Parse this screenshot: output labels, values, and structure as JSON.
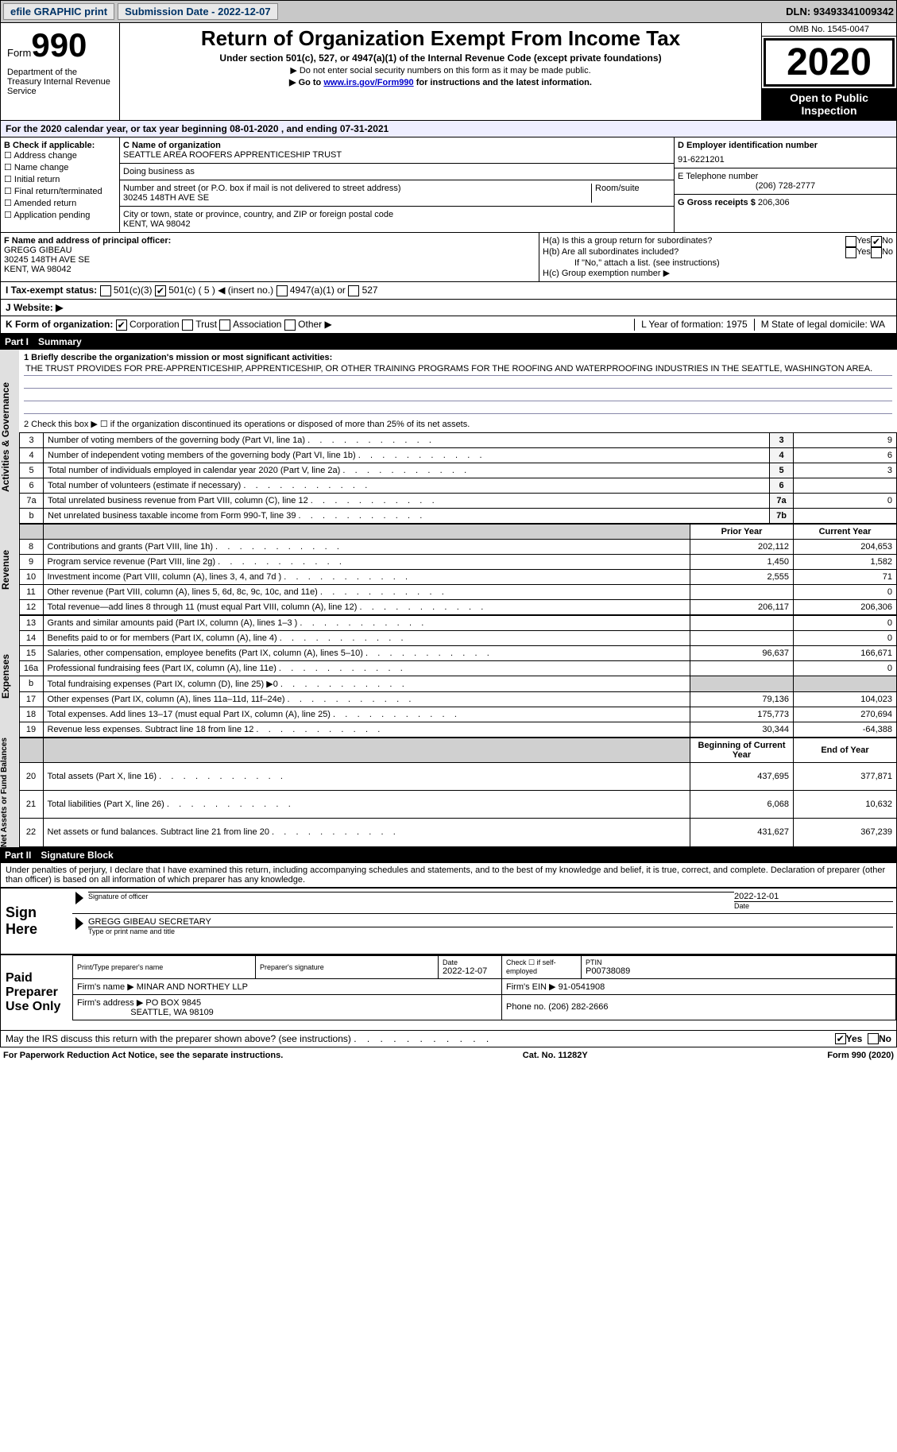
{
  "top_bar": {
    "efile": "efile GRAPHIC print",
    "submission": "Submission Date - 2022-12-07",
    "dln": "DLN: 93493341009342"
  },
  "header": {
    "form_label": "Form",
    "form_num": "990",
    "dept": "Department of the Treasury Internal Revenue Service",
    "title": "Return of Organization Exempt From Income Tax",
    "subtitle": "Under section 501(c), 527, or 4947(a)(1) of the Internal Revenue Code (except private foundations)",
    "note1": "▶ Do not enter social security numbers on this form as it may be made public.",
    "note2_pre": "▶ Go to ",
    "note2_link": "www.irs.gov/Form990",
    "note2_post": " for instructions and the latest information.",
    "omb": "OMB No. 1545-0047",
    "year": "2020",
    "inspect": "Open to Public Inspection"
  },
  "line_a": "For the 2020 calendar year, or tax year beginning 08-01-2020    , and ending 07-31-2021",
  "section_b": {
    "label": "B Check if applicable:",
    "items": [
      "Address change",
      "Name change",
      "Initial return",
      "Final return/terminated",
      "Amended return",
      "Application pending"
    ]
  },
  "section_c": {
    "label_name": "C Name of organization",
    "name": "SEATTLE AREA ROOFERS APPRENTICESHIP TRUST",
    "dba_label": "Doing business as",
    "dba": "",
    "addr_label": "Number and street (or P.O. box if mail is not delivered to street address)",
    "room_label": "Room/suite",
    "addr": "30245 148TH AVE SE",
    "city_label": "City or town, state or province, country, and ZIP or foreign postal code",
    "city": "KENT, WA  98042"
  },
  "section_d": {
    "ein_label": "D Employer identification number",
    "ein": "91-6221201",
    "phone_label": "E Telephone number",
    "phone": "(206) 728-2777",
    "receipts_label": "G Gross receipts $",
    "receipts": "206,306"
  },
  "section_f": {
    "label": "F  Name and address of principal officer:",
    "name": "GREGG GIBEAU",
    "addr1": "30245 148TH AVE SE",
    "addr2": "KENT, WA  98042"
  },
  "section_h": {
    "ha_label": "H(a)  Is this a group return for subordinates?",
    "hb_label": "H(b)  Are all subordinates included?",
    "hb_note": "If \"No,\" attach a list. (see instructions)",
    "hc_label": "H(c)  Group exemption number ▶",
    "yes": "Yes",
    "no": "No"
  },
  "line_i": {
    "label": "I   Tax-exempt status:",
    "opts": [
      "501(c)(3)",
      "501(c) ( 5 ) ◀ (insert no.)",
      "4947(a)(1) or",
      "527"
    ]
  },
  "line_j": "J   Website: ▶",
  "line_k": {
    "label": "K Form of organization:",
    "opts": [
      "Corporation",
      "Trust",
      "Association",
      "Other ▶"
    ],
    "year_label": "L Year of formation: 1975",
    "state_label": "M State of legal domicile: WA"
  },
  "part1": {
    "hdr": "Part I",
    "title": "Summary",
    "line1_label": "1  Briefly describe the organization's mission or most significant activities:",
    "line1_text": "THE TRUST PROVIDES FOR PRE-APPRENTICESHIP, APPRENTICESHIP, OR OTHER TRAINING PROGRAMS FOR THE ROOFING AND WATERPROOFING INDUSTRIES IN THE SEATTLE, WASHINGTON AREA.",
    "line2": "2   Check this box ▶ ☐  if the organization discontinued its operations or disposed of more than 25% of its net assets.",
    "governance_label": "Activities & Governance",
    "revenue_label": "Revenue",
    "expenses_label": "Expenses",
    "netassets_label": "Net Assets or Fund Balances",
    "prior_year": "Prior Year",
    "current_year": "Current Year",
    "begin_year": "Beginning of Current Year",
    "end_year": "End of Year",
    "rows_gov": [
      {
        "n": "3",
        "txt": "Number of voting members of the governing body (Part VI, line 1a)",
        "v": "9"
      },
      {
        "n": "4",
        "txt": "Number of independent voting members of the governing body (Part VI, line 1b)",
        "v": "6"
      },
      {
        "n": "5",
        "txt": "Total number of individuals employed in calendar year 2020 (Part V, line 2a)",
        "v": "3"
      },
      {
        "n": "6",
        "txt": "Total number of volunteers (estimate if necessary)",
        "v": ""
      },
      {
        "n": "7a",
        "txt": "Total unrelated business revenue from Part VIII, column (C), line 12",
        "v": "0"
      },
      {
        "n": "b",
        "txt": "Net unrelated business taxable income from Form 990-T, line 39",
        "n2": "7b",
        "v": ""
      }
    ],
    "rows_rev": [
      {
        "n": "8",
        "txt": "Contributions and grants (Part VIII, line 1h)",
        "py": "202,112",
        "cy": "204,653"
      },
      {
        "n": "9",
        "txt": "Program service revenue (Part VIII, line 2g)",
        "py": "1,450",
        "cy": "1,582"
      },
      {
        "n": "10",
        "txt": "Investment income (Part VIII, column (A), lines 3, 4, and 7d )",
        "py": "2,555",
        "cy": "71"
      },
      {
        "n": "11",
        "txt": "Other revenue (Part VIII, column (A), lines 5, 6d, 8c, 9c, 10c, and 11e)",
        "py": "",
        "cy": "0"
      },
      {
        "n": "12",
        "txt": "Total revenue—add lines 8 through 11 (must equal Part VIII, column (A), line 12)",
        "py": "206,117",
        "cy": "206,306"
      }
    ],
    "rows_exp": [
      {
        "n": "13",
        "txt": "Grants and similar amounts paid (Part IX, column (A), lines 1–3 )",
        "py": "",
        "cy": "0"
      },
      {
        "n": "14",
        "txt": "Benefits paid to or for members (Part IX, column (A), line 4)",
        "py": "",
        "cy": "0"
      },
      {
        "n": "15",
        "txt": "Salaries, other compensation, employee benefits (Part IX, column (A), lines 5–10)",
        "py": "96,637",
        "cy": "166,671"
      },
      {
        "n": "16a",
        "txt": "Professional fundraising fees (Part IX, column (A), line 11e)",
        "py": "",
        "cy": "0"
      },
      {
        "n": "b",
        "txt": "Total fundraising expenses (Part IX, column (D), line 25) ▶0",
        "py": "grey",
        "cy": "grey"
      },
      {
        "n": "17",
        "txt": "Other expenses (Part IX, column (A), lines 11a–11d, 11f–24e)",
        "py": "79,136",
        "cy": "104,023"
      },
      {
        "n": "18",
        "txt": "Total expenses. Add lines 13–17 (must equal Part IX, column (A), line 25)",
        "py": "175,773",
        "cy": "270,694"
      },
      {
        "n": "19",
        "txt": "Revenue less expenses. Subtract line 18 from line 12",
        "py": "30,344",
        "cy": "-64,388"
      }
    ],
    "rows_net": [
      {
        "n": "20",
        "txt": "Total assets (Part X, line 16)",
        "py": "437,695",
        "cy": "377,871"
      },
      {
        "n": "21",
        "txt": "Total liabilities (Part X, line 26)",
        "py": "6,068",
        "cy": "10,632"
      },
      {
        "n": "22",
        "txt": "Net assets or fund balances. Subtract line 21 from line 20",
        "py": "431,627",
        "cy": "367,239"
      }
    ]
  },
  "part2": {
    "hdr": "Part II",
    "title": "Signature Block",
    "declaration": "Under penalties of perjury, I declare that I have examined this return, including accompanying schedules and statements, and to the best of my knowledge and belief, it is true, correct, and complete. Declaration of preparer (other than officer) is based on all information of which preparer has any knowledge.",
    "sign_here": "Sign Here",
    "sig_officer": "Signature of officer",
    "date": "Date",
    "sig_date": "2022-12-01",
    "officer_name": "GREGG GIBEAU  SECRETARY",
    "name_title": "Type or print name and title",
    "paid_prep": "Paid Preparer Use Only",
    "prep_name_label": "Print/Type preparer's name",
    "prep_sig_label": "Preparer's signature",
    "prep_date_label": "Date",
    "prep_date": "2022-12-07",
    "self_emp": "Check ☐ if self-employed",
    "ptin_label": "PTIN",
    "ptin": "P00738089",
    "firm_name_label": "Firm's name     ▶",
    "firm_name": "MINAR AND NORTHEY LLP",
    "firm_ein_label": "Firm's EIN ▶",
    "firm_ein": "91-0541908",
    "firm_addr_label": "Firm's address ▶",
    "firm_addr1": "PO BOX 9845",
    "firm_addr2": "SEATTLE, WA  98109",
    "phone_label": "Phone no.",
    "phone": "(206) 282-2666",
    "may_irs": "May the IRS discuss this return with the preparer shown above? (see instructions)"
  },
  "footer": {
    "left": "For Paperwork Reduction Act Notice, see the separate instructions.",
    "mid": "Cat. No. 11282Y",
    "right": "Form 990 (2020)"
  }
}
